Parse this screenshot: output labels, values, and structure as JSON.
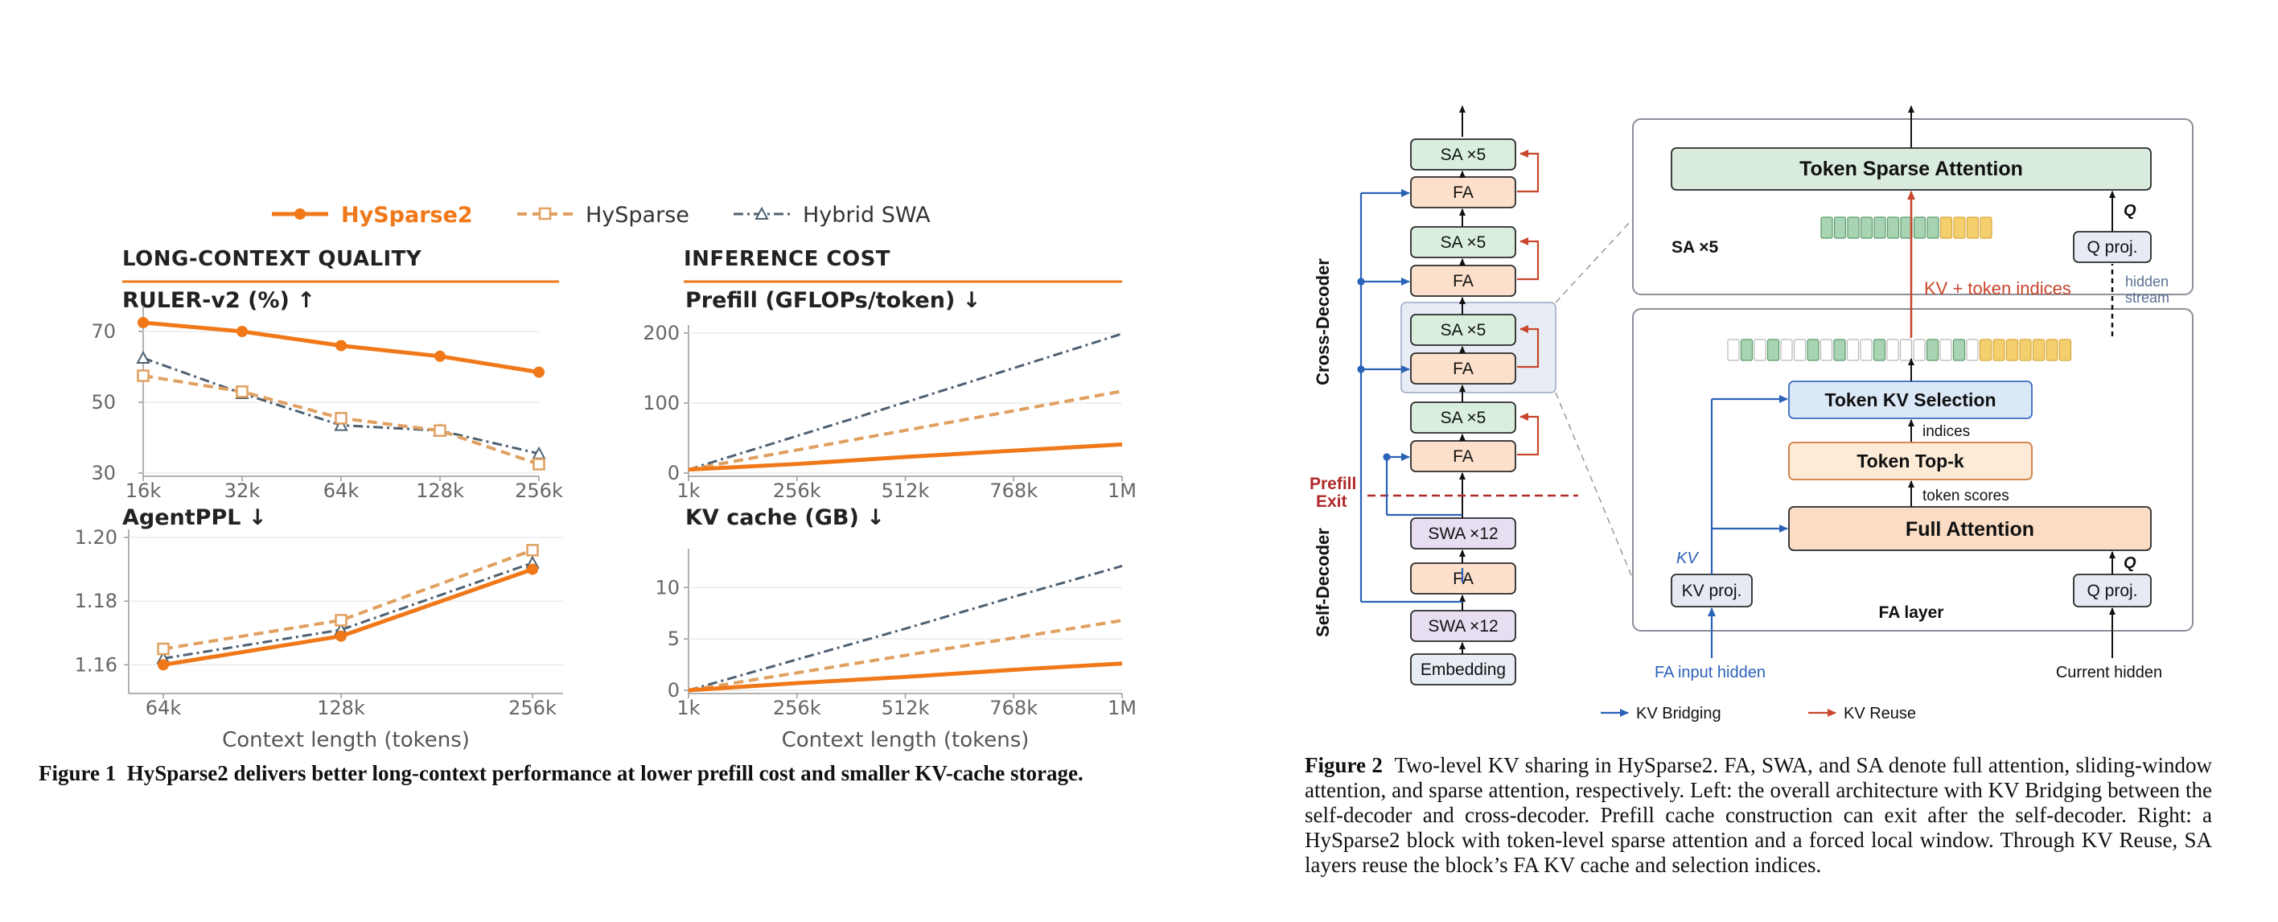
{
  "legend": [
    {
      "name": "HySparse2",
      "color": "#f07818"
    },
    {
      "name": "HySparse",
      "color": "#e0a060"
    },
    {
      "name": "Hybrid SWA",
      "color": "#4d6072"
    }
  ],
  "sections": {
    "left": "LONG-CONTEXT QUALITY",
    "right": "INFERENCE COST"
  },
  "chart_data": [
    {
      "type": "line",
      "title": "RULER-v2 (%) ↑",
      "categories": [
        "16k",
        "32k",
        "64k",
        "128k",
        "256k"
      ],
      "ylim": [
        30,
        75
      ],
      "yticks": [
        "30",
        "50",
        "70"
      ],
      "series": [
        {
          "name": "HySparse2",
          "values": [
            72.5,
            70.0,
            66.0,
            63.0,
            58.5
          ]
        },
        {
          "name": "HySparse",
          "values": [
            57.5,
            53.0,
            45.5,
            42.0,
            32.5
          ]
        },
        {
          "name": "Hybrid SWA",
          "values": [
            62.5,
            52.5,
            43.5,
            42.0,
            35.5
          ]
        }
      ]
    },
    {
      "type": "line",
      "title": "Prefill (GFLOPs/token) ↓",
      "categories": [
        "1k",
        "256k",
        "512k",
        "768k",
        "1M"
      ],
      "ylim": [
        0,
        200
      ],
      "yticks": [
        "0",
        "100",
        "200"
      ],
      "series": [
        {
          "name": "HySparse2",
          "values": [
            5,
            13,
            23,
            32,
            41
          ]
        },
        {
          "name": "HySparse",
          "values": [
            5,
            33,
            61,
            89,
            117
          ]
        },
        {
          "name": "Hybrid SWA",
          "values": [
            5,
            53,
            101,
            150,
            199
          ]
        }
      ]
    },
    {
      "type": "line",
      "title": "AgentPPL ↓",
      "categories": [
        "64k",
        "128k",
        "256k"
      ],
      "ylim": [
        1.152,
        1.2
      ],
      "yticks": [
        "1.16",
        "1.18",
        "1.20"
      ],
      "xlabel": "Context length (tokens)",
      "series": [
        {
          "name": "HySparse2",
          "values": [
            1.16,
            1.169,
            1.19
          ]
        },
        {
          "name": "HySparse",
          "values": [
            1.165,
            1.174,
            1.196
          ]
        },
        {
          "name": "Hybrid SWA",
          "values": [
            1.162,
            1.171,
            1.192
          ]
        }
      ]
    },
    {
      "type": "line",
      "title": "KV cache (GB) ↓",
      "categories": [
        "1k",
        "256k",
        "512k",
        "768k",
        "1M"
      ],
      "ylim": [
        0,
        13
      ],
      "yticks": [
        "0",
        "5",
        "10"
      ],
      "xlabel": "Context length (tokens)",
      "series": [
        {
          "name": "HySparse2",
          "values": [
            0,
            0.7,
            1.3,
            2.0,
            2.6
          ]
        },
        {
          "name": "HySparse",
          "values": [
            0,
            1.7,
            3.4,
            5.1,
            6.8
          ]
        },
        {
          "name": "Hybrid SWA",
          "values": [
            0,
            3.0,
            6.0,
            9.1,
            12.1
          ]
        }
      ]
    }
  ],
  "fig2": {
    "stack": [
      "SA ×5",
      "FA",
      "SA ×5",
      "FA",
      "SA ×5",
      "FA",
      "SA ×5",
      "FA",
      "SWA ×12",
      "FA",
      "SWA ×12",
      "Embedding"
    ],
    "cross_decoder": "Cross-Decoder",
    "self_decoder": "Self-Decoder",
    "prefill_exit": [
      "Prefill",
      "Exit"
    ],
    "tsa": "Token Sparse Attention",
    "sa_x5": "SA ×5",
    "q_proj": "Q proj.",
    "q": "Q",
    "hidden_stream": [
      "hidden",
      "stream"
    ],
    "kv_token_indices": "KV + token indices",
    "token_kv_selection": "Token KV Selection",
    "indices": "indices",
    "token_topk": "Token Top-k",
    "token_scores": "token scores",
    "full_attention": "Full Attention",
    "kv": "KV",
    "kv_proj": "KV proj.",
    "fa_layer": "FA layer",
    "fa_input_hidden": "FA input hidden",
    "current_hidden": "Current hidden",
    "legend_bridging": "KV Bridging",
    "legend_reuse": "KV Reuse"
  },
  "captions": {
    "fig1_label": "Figure 1",
    "fig1_text": "HySparse2 delivers better long-context performance at lower prefill cost and smaller KV-cache storage.",
    "fig2_label": "Figure 2",
    "fig2_text": "Two-level KV sharing in HySparse2. FA, SWA, and SA denote full attention, sliding-window attention, and sparse attention, respectively. Left: the overall architecture with KV Bridging between the self-decoder and cross-decoder. Prefill cache construction can exit after the self-decoder. Right: a HySparse2 block with token-level sparse attention and a forced local window. Through KV Reuse, SA layers reuse the block’s FA KV cache and selection indices."
  }
}
